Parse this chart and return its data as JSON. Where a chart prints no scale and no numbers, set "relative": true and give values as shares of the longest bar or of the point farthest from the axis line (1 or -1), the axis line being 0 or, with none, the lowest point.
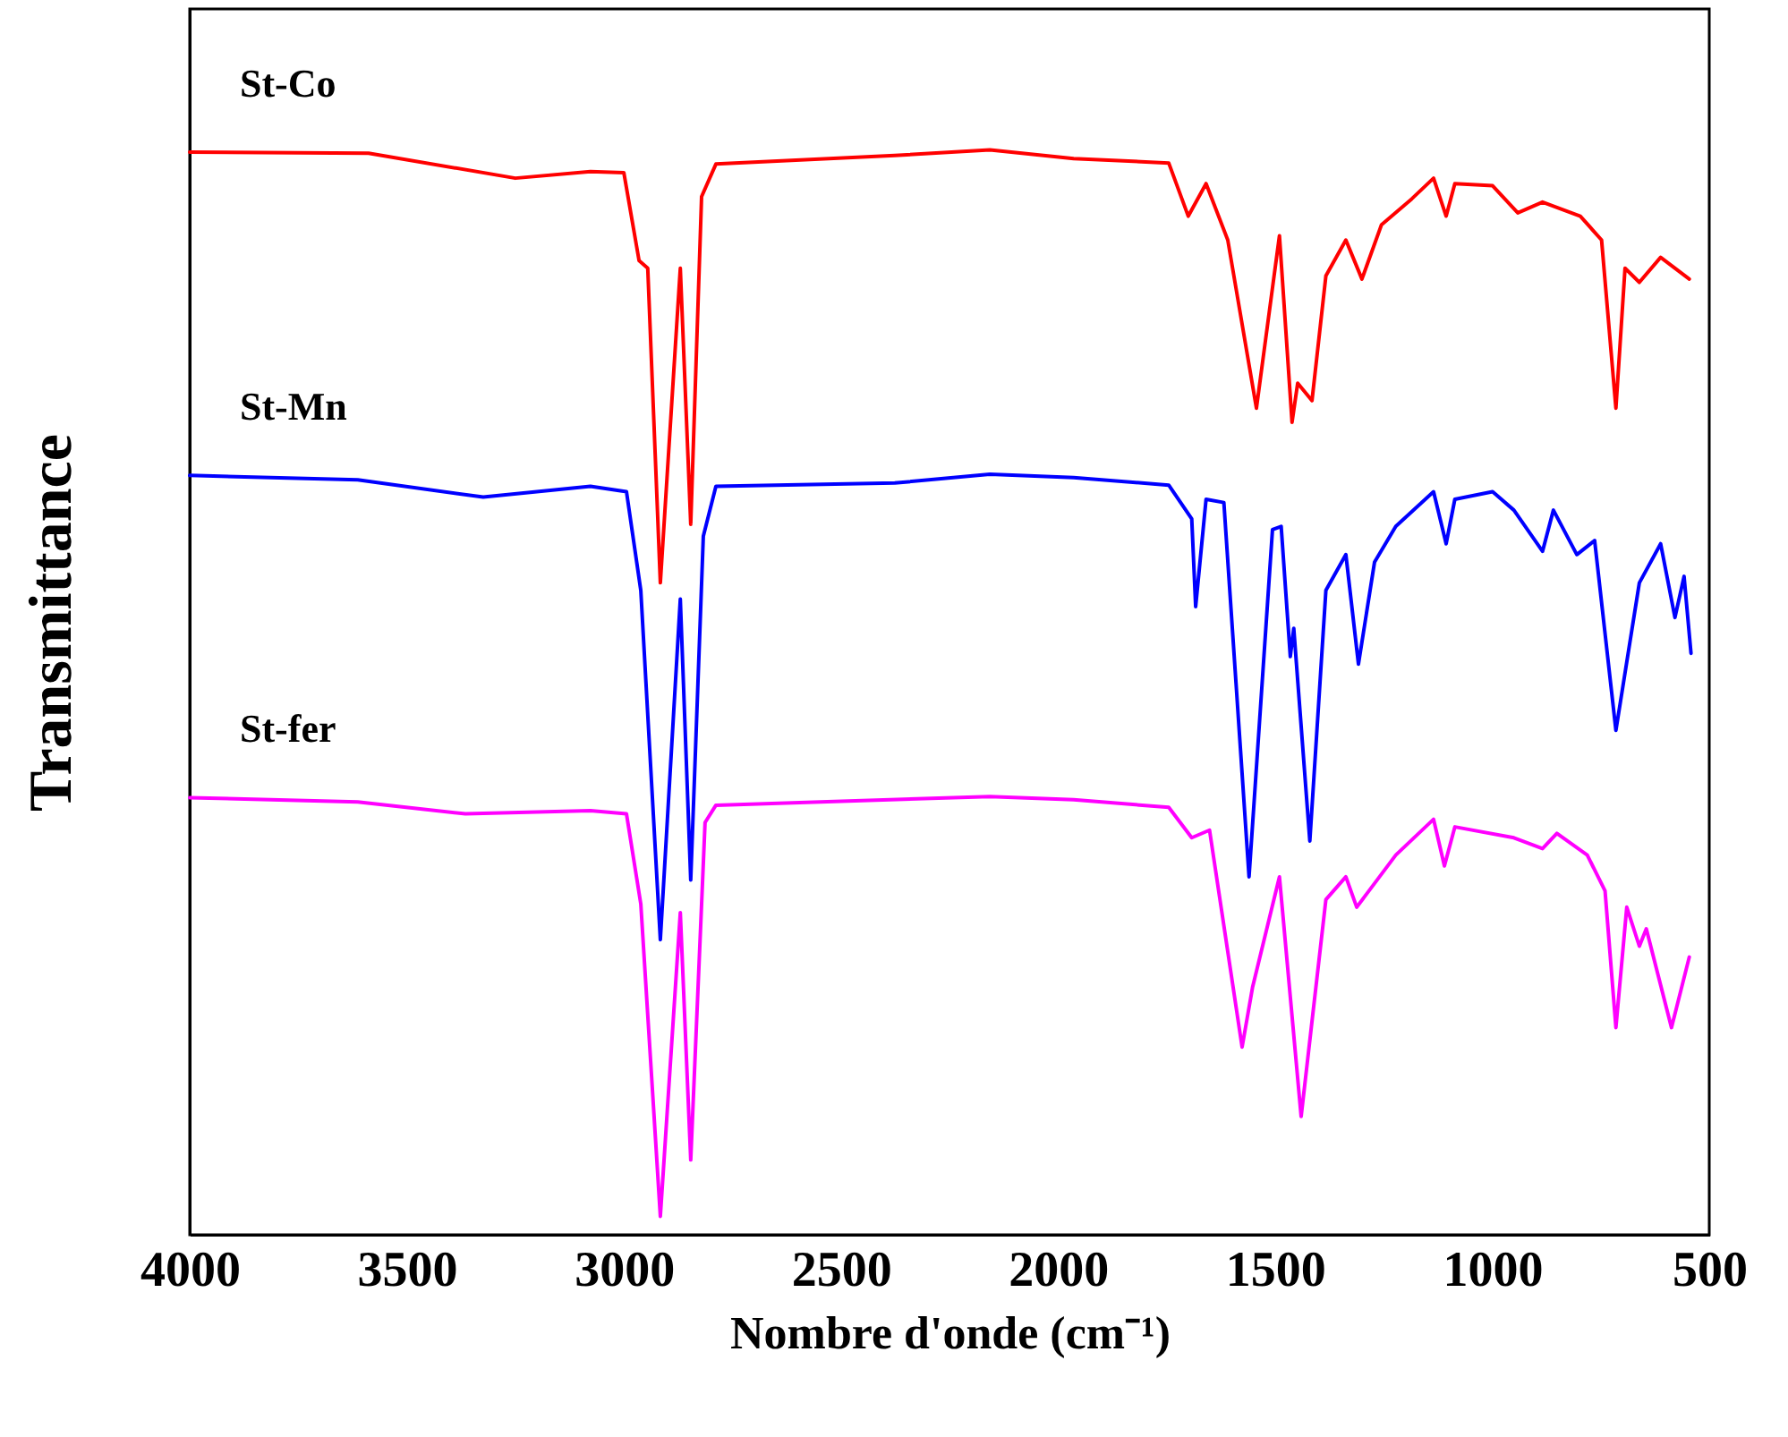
{
  "chart_data": {
    "type": "line",
    "relative": true,
    "xlabel": "Nombre d'onde (cm⁻¹)",
    "ylabel": "Transmittance",
    "xlim": [
      4000,
      500
    ],
    "xticks": [
      4000,
      3500,
      3000,
      2500,
      2000,
      1500,
      1000,
      500
    ],
    "series": [
      {
        "name": "St-Co",
        "color": "#ff0000",
        "x": [
          4000,
          3588,
          3250,
          3077,
          3000,
          2965,
          2945,
          2916,
          2870,
          2846,
          2821,
          2788,
          2376,
          2157,
          1964,
          1745,
          1700,
          1659,
          1609,
          1543,
          1490,
          1461,
          1448,
          1415,
          1383,
          1337,
          1300,
          1255,
          1185,
          1135,
          1106,
          1086,
          999,
          941,
          884,
          797,
          748,
          715,
          694,
          661,
          612,
          546
        ],
        "values": [
          0.998,
          0.997,
          0.974,
          0.98,
          0.979,
          0.898,
          0.891,
          0.601,
          0.891,
          0.655,
          0.957,
          0.987,
          0.995,
          1.0,
          0.992,
          0.988,
          0.939,
          0.969,
          0.917,
          0.762,
          0.921,
          0.749,
          0.785,
          0.769,
          0.884,
          0.917,
          0.881,
          0.931,
          0.955,
          0.974,
          0.939,
          0.969,
          0.967,
          0.942,
          0.952,
          0.939,
          0.917,
          0.762,
          0.891,
          0.878,
          0.901,
          0.881
        ]
      },
      {
        "name": "St-Mn",
        "color": "#0000ff",
        "x": [
          4000,
          3613,
          3324,
          3077,
          2994,
          2961,
          2916,
          2870,
          2846,
          2817,
          2788,
          2376,
          2157,
          1964,
          1745,
          1692,
          1683,
          1659,
          1618,
          1560,
          1506,
          1486,
          1465,
          1457,
          1420,
          1383,
          1337,
          1308,
          1271,
          1222,
          1135,
          1106,
          1086,
          999,
          950,
          884,
          859,
          805,
          764,
          715,
          661,
          612,
          579,
          558,
          542
        ],
        "values": [
          0.7,
          0.696,
          0.68,
          0.69,
          0.685,
          0.594,
          0.272,
          0.586,
          0.327,
          0.644,
          0.69,
          0.693,
          0.701,
          0.698,
          0.691,
          0.66,
          0.579,
          0.678,
          0.675,
          0.33,
          0.65,
          0.653,
          0.533,
          0.559,
          0.363,
          0.594,
          0.627,
          0.526,
          0.62,
          0.653,
          0.685,
          0.637,
          0.678,
          0.685,
          0.668,
          0.63,
          0.668,
          0.627,
          0.64,
          0.465,
          0.601,
          0.637,
          0.569,
          0.607,
          0.536
        ]
      },
      {
        "name": "St-fer",
        "color": "#ff00ff",
        "x": [
          4000,
          3613,
          3365,
          3077,
          2994,
          2961,
          2916,
          2870,
          2846,
          2813,
          2788,
          2157,
          1964,
          1745,
          1692,
          1651,
          1576,
          1552,
          1490,
          1440,
          1383,
          1337,
          1312,
          1222,
          1135,
          1110,
          1086,
          950,
          884,
          851,
          781,
          740,
          715,
          690,
          661,
          645,
          587,
          546
        ],
        "values": [
          0.403,
          0.399,
          0.388,
          0.391,
          0.388,
          0.305,
          0.017,
          0.297,
          0.069,
          0.38,
          0.396,
          0.404,
          0.401,
          0.394,
          0.366,
          0.373,
          0.173,
          0.228,
          0.33,
          0.109,
          0.309,
          0.33,
          0.302,
          0.35,
          0.383,
          0.34,
          0.376,
          0.366,
          0.356,
          0.37,
          0.35,
          0.317,
          0.191,
          0.302,
          0.266,
          0.282,
          0.191,
          0.256
        ]
      }
    ]
  }
}
